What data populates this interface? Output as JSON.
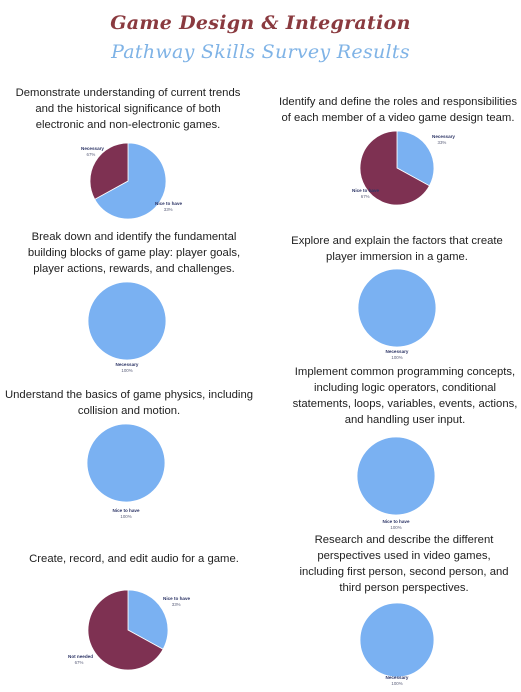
{
  "header": {
    "title": "Game Design & Integration",
    "subtitle": "Pathway Skills Survey Results"
  },
  "colors": {
    "necessary": "#7ab1f2",
    "nice_to_have": "#7e3152",
    "title": "#8a3a3f",
    "subtitle": "#7fb3e6"
  },
  "chart_data": [
    {
      "type": "pie",
      "title": "Demonstrate understanding of current trends and the historical significance of both electronic and non-electronic games.",
      "slices": [
        {
          "label": "Necessary",
          "value": 67,
          "pct_text": "67%",
          "color": "#7ab1f2"
        },
        {
          "label": "Nice to have",
          "value": 33,
          "pct_text": "33%",
          "color": "#7e3152"
        }
      ]
    },
    {
      "type": "pie",
      "title": "Identify and define the roles and responsibilities of each member of a video game design team.",
      "slices": [
        {
          "label": "Necessary",
          "value": 33,
          "pct_text": "33%",
          "color": "#7ab1f2"
        },
        {
          "label": "Nice to have",
          "value": 67,
          "pct_text": "67%",
          "color": "#7e3152"
        }
      ]
    },
    {
      "type": "pie",
      "title": "Break down and identify the fundamental building blocks of game play: player goals, player actions, rewards, and challenges.",
      "slices": [
        {
          "label": "Necessary",
          "value": 100,
          "pct_text": "100%",
          "color": "#7ab1f2"
        }
      ]
    },
    {
      "type": "pie",
      "title": "Explore and explain the factors that create player immersion in a game.",
      "slices": [
        {
          "label": "Necessary",
          "value": 100,
          "pct_text": "100%",
          "color": "#7ab1f2"
        }
      ]
    },
    {
      "type": "pie",
      "title": "Understand the basics of game physics, including collision and motion.",
      "slices": [
        {
          "label": "Nice to have",
          "value": 100,
          "pct_text": "100%",
          "color": "#7ab1f2"
        }
      ]
    },
    {
      "type": "pie",
      "title": "Implement common programming concepts, including logic operators, conditional statements, loops, variables, events, actions, and handling user input.",
      "slices": [
        {
          "label": "Nice to have",
          "value": 100,
          "pct_text": "100%",
          "color": "#7ab1f2"
        }
      ]
    },
    {
      "type": "pie",
      "title": "Create, record, and edit audio for a game.",
      "slices": [
        {
          "label": "Nice to have",
          "value": 33,
          "pct_text": "33%",
          "color": "#7ab1f2"
        },
        {
          "label": "Not needed",
          "value": 67,
          "pct_text": "67%",
          "color": "#7e3152"
        }
      ]
    },
    {
      "type": "pie",
      "title": "Research and describe the different perspectives used in video games, including first person, second person, and third person perspectives.",
      "slices": [
        {
          "label": "Necessary",
          "value": 100,
          "pct_text": "100%",
          "color": "#7ab1f2"
        }
      ]
    }
  ]
}
